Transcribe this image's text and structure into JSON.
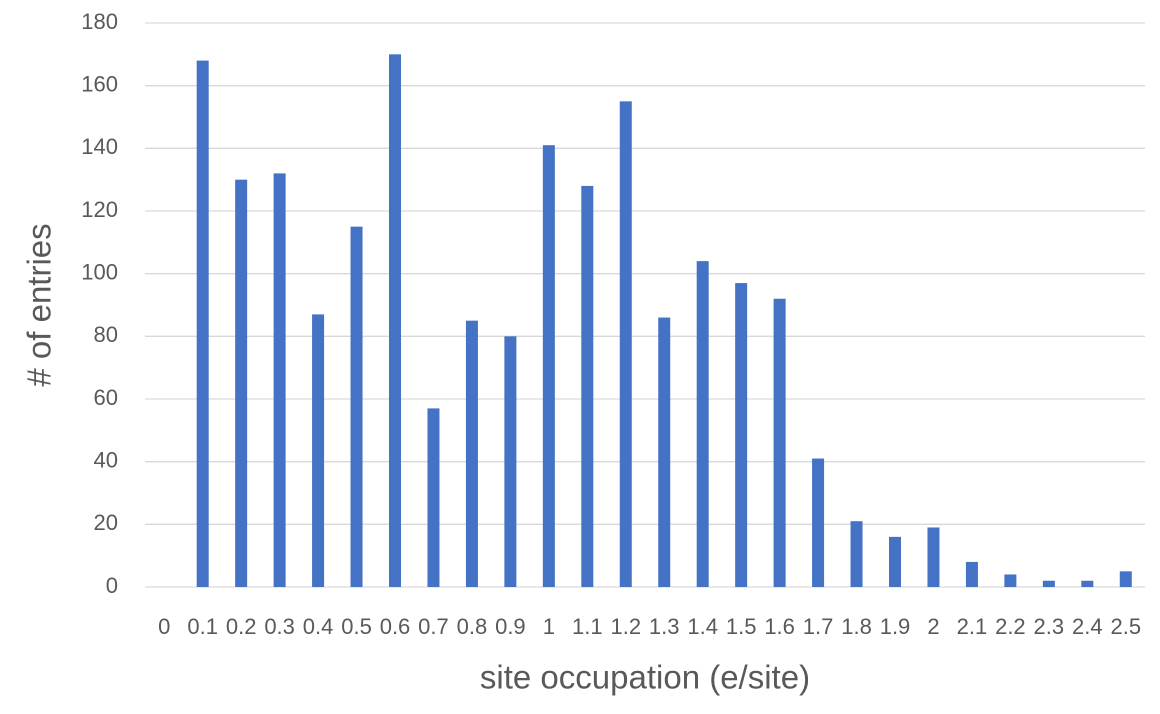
{
  "chart_data": {
    "type": "bar",
    "x_label": "site occupation (e/site)",
    "y_label": "# of entries",
    "categories": [
      "0",
      "0.1",
      "0.2",
      "0.3",
      "0.4",
      "0.5",
      "0.6",
      "0.7",
      "0.8",
      "0.9",
      "1",
      "1.1",
      "1.2",
      "1.3",
      "1.4",
      "1.5",
      "1.6",
      "1.7",
      "1.8",
      "1.9",
      "2",
      "2.1",
      "2.2",
      "2.3",
      "2.4",
      "2.5"
    ],
    "values": [
      0,
      168,
      130,
      132,
      87,
      115,
      170,
      57,
      85,
      80,
      141,
      128,
      155,
      86,
      104,
      97,
      92,
      41,
      21,
      16,
      19,
      8,
      4,
      2,
      2,
      5
    ],
    "color": "#4472c4",
    "ylim": [
      0,
      180
    ],
    "yticks": [
      0,
      20,
      40,
      60,
      80,
      100,
      120,
      140,
      160,
      180
    ],
    "grid": true
  }
}
